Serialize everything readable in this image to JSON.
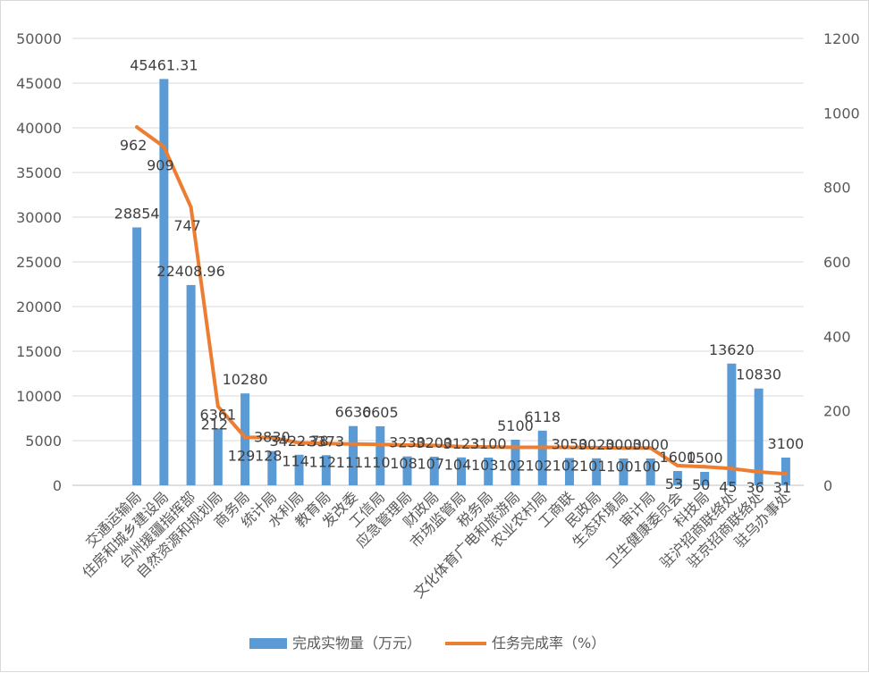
{
  "chart_data": {
    "type": "bar+line",
    "title": "",
    "categories": [
      "交通运输局",
      "住房和城乡建设局",
      "台州援疆指挥部",
      "自然资源和规划局",
      "商务局",
      "统计局",
      "水利局",
      "教育局",
      "发改委",
      "工信局",
      "应急管理局",
      "财政局",
      "市场监管局",
      "税务局",
      "文化体育广电和旅游局",
      "农业农村局",
      "工商联",
      "民政局",
      "生态环境局",
      "审计局",
      "卫生健康委员会",
      "科技局",
      "驻沪招商联络处",
      "驻京招商联络处",
      "驻乌办事处"
    ],
    "series": [
      {
        "name": "完成实物量（万元）",
        "type": "bar",
        "axis": "left",
        "color": "#5b9bd5",
        "values": [
          28854,
          45461.31,
          22408.96,
          6361,
          10280,
          3830,
          3422.78,
          3373,
          6630,
          6605,
          3230,
          3200,
          3123,
          3100,
          5100,
          6118,
          3050,
          3020,
          3000,
          3000,
          1600,
          1500,
          13620,
          10830,
          3100
        ],
        "labels": [
          "28854",
          "45461.31",
          "22408.96",
          "6361",
          "10280",
          "3830",
          "3422.78",
          "3373",
          "6630",
          "6605",
          "3230",
          "3200",
          "3123",
          "3100",
          "5100",
          "6118",
          "3050",
          "3020",
          "3000",
          "3000",
          "1600",
          "1500",
          "13620",
          "10830",
          "3100"
        ]
      },
      {
        "name": "任务完成率（%）",
        "type": "line",
        "axis": "right",
        "color": "#ed7d31",
        "values": [
          962,
          909,
          747,
          212,
          129,
          128,
          114,
          112,
          111,
          110,
          108,
          107,
          104,
          103,
          102,
          102,
          102,
          101,
          100,
          100,
          53,
          50,
          45,
          36,
          31
        ],
        "labels": [
          "962",
          "909",
          "747",
          "212",
          "129",
          "128",
          "114",
          "112",
          "111",
          "110",
          "108",
          "107",
          "104",
          "103",
          "102",
          "102",
          "102",
          "101",
          "100",
          "100",
          "53",
          "50",
          "45",
          "36",
          "31"
        ]
      }
    ],
    "left_axis": {
      "min": 0,
      "max": 50000,
      "step": 5000,
      "ticks": [
        "0",
        "5000",
        "10000",
        "15000",
        "20000",
        "25000",
        "30000",
        "35000",
        "40000",
        "45000",
        "50000"
      ]
    },
    "right_axis": {
      "min": 0,
      "max": 1200,
      "step": 200,
      "ticks": [
        "0",
        "200",
        "400",
        "600",
        "800",
        "1000",
        "1200"
      ]
    },
    "grid": true,
    "legend_position": "bottom"
  }
}
